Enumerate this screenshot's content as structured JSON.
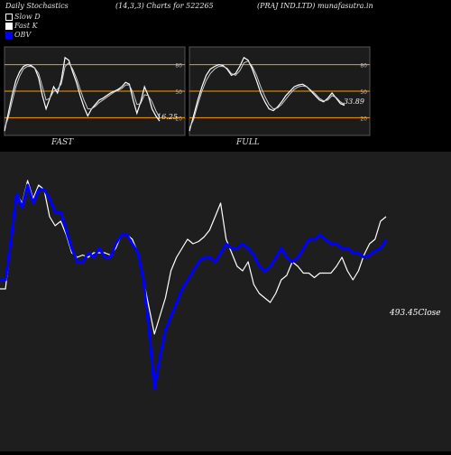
{
  "header": {
    "left": "Daily Stochastics",
    "params": "(14,3,3) Charts for 522265",
    "company": "(PRAJ IND.LTD) munafasutra.in"
  },
  "legend": [
    {
      "label": "Slow  D",
      "color": "#000000"
    },
    {
      "label": "Fast K",
      "color": "#ffffff"
    },
    {
      "label": "OBV",
      "color": "#0000ff"
    }
  ],
  "chart_data": [
    {
      "type": "line",
      "name": "FAST",
      "ylim": [
        0,
        100
      ],
      "levels": [
        20,
        50,
        80
      ],
      "level_color": "#ff9900",
      "annotation": "16.25",
      "series": [
        {
          "color": "#ffffff",
          "values": [
            5,
            25,
            45,
            62,
            72,
            78,
            80,
            79,
            76,
            65,
            45,
            30,
            42,
            55,
            48,
            62,
            88,
            85,
            72,
            60,
            45,
            32,
            22,
            30,
            35,
            40,
            42,
            45,
            48,
            50,
            52,
            55,
            60,
            58,
            40,
            25,
            38,
            55,
            45,
            30,
            22,
            16.25
          ]
        },
        {
          "color": "#cccccc",
          "values": [
            8,
            20,
            38,
            55,
            67,
            75,
            78,
            78,
            76,
            70,
            55,
            40,
            42,
            50,
            52,
            58,
            78,
            82,
            75,
            65,
            52,
            40,
            30,
            30,
            33,
            37,
            40,
            43,
            46,
            49,
            51,
            53,
            57,
            57,
            48,
            35,
            36,
            46,
            45,
            38,
            28,
            20
          ]
        }
      ]
    },
    {
      "type": "line",
      "name": "FULL",
      "ylim": [
        0,
        100
      ],
      "levels": [
        20,
        50,
        80
      ],
      "level_color": "#ff9900",
      "annotation": "33.89",
      "series": [
        {
          "color": "#ffffff",
          "values": [
            5,
            22,
            40,
            55,
            68,
            75,
            78,
            80,
            79,
            75,
            68,
            70,
            78,
            88,
            85,
            75,
            62,
            48,
            38,
            30,
            28,
            32,
            38,
            45,
            50,
            55,
            57,
            58,
            55,
            50,
            45,
            40,
            38,
            42,
            48,
            42,
            36,
            34
          ]
        },
        {
          "color": "#cccccc",
          "values": [
            8,
            18,
            35,
            50,
            62,
            70,
            75,
            78,
            78,
            76,
            70,
            68,
            73,
            82,
            84,
            78,
            68,
            55,
            44,
            35,
            30,
            31,
            35,
            41,
            47,
            52,
            55,
            56,
            55,
            51,
            47,
            42,
            39,
            40,
            45,
            43,
            38,
            35
          ]
        }
      ]
    },
    {
      "type": "line",
      "name": "price-obv",
      "close_label": "493.45",
      "close_word": "Close",
      "series": [
        {
          "name": "Price",
          "color": "#ffffff",
          "values": [
            40,
            40,
            62,
            82,
            78,
            88,
            80,
            86,
            84,
            72,
            68,
            70,
            64,
            56,
            54,
            55,
            54,
            56,
            56,
            56,
            55,
            58,
            64,
            64,
            62,
            56,
            44,
            32,
            20,
            28,
            36,
            48,
            54,
            58,
            62,
            60,
            61,
            63,
            66,
            72,
            78,
            62,
            56,
            50,
            48,
            52,
            42,
            38,
            36,
            34,
            38,
            44,
            46,
            52,
            50,
            47,
            47,
            45,
            47,
            47,
            47,
            50,
            54,
            48,
            44,
            48,
            55,
            60,
            62,
            70,
            72
          ]
        },
        {
          "name": "OBV",
          "color": "#0000ff",
          "values": [
            44,
            44,
            62,
            82,
            76,
            86,
            78,
            84,
            84,
            80,
            74,
            74,
            66,
            58,
            52,
            52,
            56,
            54,
            58,
            54,
            54,
            60,
            64,
            64,
            60,
            56,
            44,
            22,
            -4,
            10,
            22,
            28,
            34,
            40,
            44,
            48,
            52,
            54,
            54,
            52,
            56,
            60,
            58,
            58,
            60,
            58,
            55,
            50,
            48,
            50,
            54,
            58,
            54,
            52,
            54,
            58,
            62,
            62,
            64,
            62,
            60,
            60,
            58,
            58,
            56,
            56,
            54,
            55,
            57,
            58,
            62
          ]
        }
      ]
    }
  ]
}
